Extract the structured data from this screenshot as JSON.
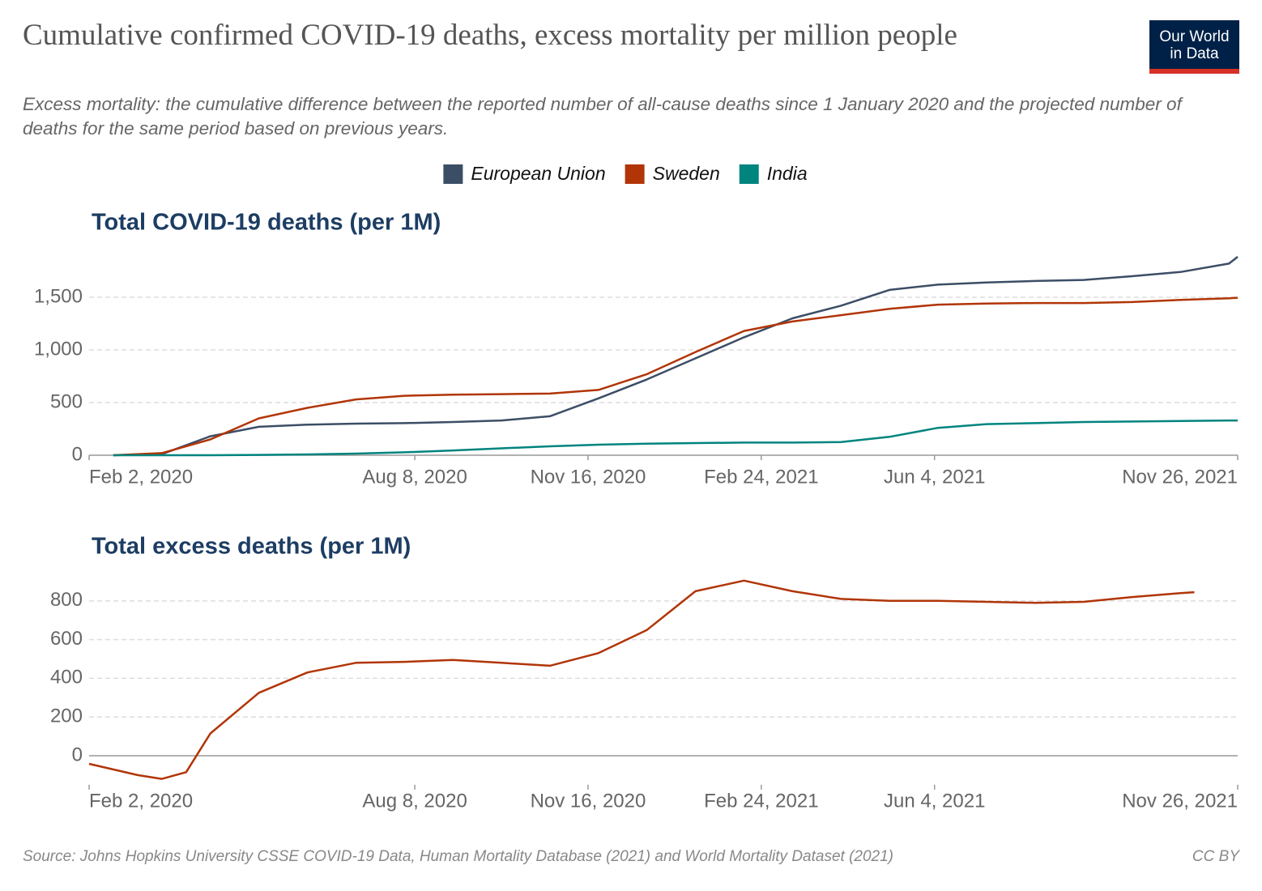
{
  "title": "Cumulative confirmed COVID-19 deaths, excess mortality per million people",
  "subtitle": "Excess mortality: the cumulative difference between the reported number of all-cause deaths since 1 January 2020 and the projected number of deaths for the same period based on previous years.",
  "logo": {
    "line1": "Our World",
    "line2": "in Data"
  },
  "source": "Source: Johns Hopkins University CSSE COVID-19 Data, Human Mortality Database (2021) and World Mortality Dataset (2021)",
  "license": "CC BY",
  "chart_data": [
    {
      "type": "line",
      "title": "Total COVID-19 deaths (per 1M)",
      "x": [
        "2020-02-16",
        "2020-03-15",
        "2020-04-12",
        "2020-05-10",
        "2020-06-07",
        "2020-07-05",
        "2020-08-02",
        "2020-08-30",
        "2020-09-27",
        "2020-10-25",
        "2020-11-22",
        "2020-12-20",
        "2021-01-17",
        "2021-02-14",
        "2021-03-14",
        "2021-04-11",
        "2021-05-09",
        "2021-06-06",
        "2021-07-04",
        "2021-08-01",
        "2021-08-29",
        "2021-09-26",
        "2021-10-24",
        "2021-11-21",
        "2021-11-26"
      ],
      "series": [
        {
          "name": "European Union",
          "color": "#3c4e66",
          "values": [
            0,
            10,
            180,
            270,
            290,
            300,
            305,
            315,
            330,
            370,
            540,
            720,
            920,
            1120,
            1300,
            1420,
            1570,
            1620,
            1640,
            1655,
            1665,
            1700,
            1740,
            1820,
            1885
          ]
        },
        {
          "name": "Sweden",
          "color": "#b13507",
          "values": [
            0,
            20,
            150,
            350,
            450,
            530,
            565,
            575,
            580,
            585,
            620,
            770,
            980,
            1180,
            1270,
            1330,
            1390,
            1430,
            1440,
            1445,
            1445,
            1455,
            1475,
            1490,
            1495
          ]
        },
        {
          "name": "India",
          "color": "#00847e",
          "values": [
            0,
            0,
            0,
            3,
            8,
            15,
            28,
            45,
            65,
            85,
            100,
            110,
            115,
            120,
            120,
            125,
            175,
            260,
            295,
            305,
            315,
            320,
            325,
            330,
            330
          ]
        }
      ],
      "xlim": [
        "2020-02-02",
        "2021-11-26"
      ],
      "xticks": [
        {
          "value": "2020-02-02",
          "label": "Feb 2, 2020"
        },
        {
          "value": "2020-08-08",
          "label": "Aug 8, 2020"
        },
        {
          "value": "2020-11-16",
          "label": "Nov 16, 2020"
        },
        {
          "value": "2021-02-24",
          "label": "Feb 24, 2021"
        },
        {
          "value": "2021-06-04",
          "label": "Jun 4, 2021"
        },
        {
          "value": "2021-11-26",
          "label": "Nov 26, 2021"
        }
      ],
      "ylim": [
        0,
        1900
      ],
      "yticks": [
        0,
        500,
        {
          "value": 1000,
          "label": "1,000"
        },
        {
          "value": 1500,
          "label": "1,500"
        }
      ],
      "grid": true
    },
    {
      "type": "line",
      "title": "Total excess deaths (per 1M)",
      "x": [
        "2020-02-02",
        "2020-03-01",
        "2020-03-15",
        "2020-03-29",
        "2020-04-12",
        "2020-05-10",
        "2020-06-07",
        "2020-07-05",
        "2020-08-02",
        "2020-08-30",
        "2020-09-27",
        "2020-10-25",
        "2020-11-22",
        "2020-12-20",
        "2021-01-17",
        "2021-02-14",
        "2021-03-14",
        "2021-04-11",
        "2021-05-09",
        "2021-06-06",
        "2021-07-04",
        "2021-08-01",
        "2021-08-29",
        "2021-09-26",
        "2021-10-24",
        "2021-11-01"
      ],
      "values": [
        -42,
        -100,
        -120,
        -85,
        115,
        325,
        430,
        480,
        485,
        495,
        480,
        465,
        530,
        650,
        850,
        905,
        850,
        810,
        800,
        800,
        795,
        790,
        795,
        820,
        840,
        845
      ],
      "color": "#b13507",
      "xlim": [
        "2020-02-02",
        "2021-11-26"
      ],
      "xticks": [
        {
          "value": "2020-02-02",
          "label": "Feb 2, 2020"
        },
        {
          "value": "2020-08-08",
          "label": "Aug 8, 2020"
        },
        {
          "value": "2020-11-16",
          "label": "Nov 16, 2020"
        },
        {
          "value": "2021-02-24",
          "label": "Feb 24, 2021"
        },
        {
          "value": "2021-06-04",
          "label": "Jun 4, 2021"
        },
        {
          "value": "2021-11-26",
          "label": "Nov 26, 2021"
        }
      ],
      "ylim": [
        -150,
        950
      ],
      "yticks": [
        0,
        200,
        400,
        600,
        800
      ],
      "grid": true
    }
  ]
}
